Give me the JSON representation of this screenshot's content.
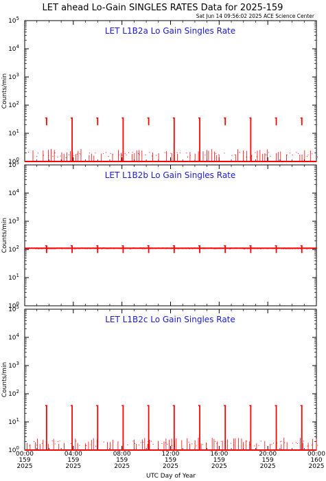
{
  "header": {
    "title": "LET ahead Lo-Gain SINGLES RATES Data for 2025-159",
    "timestamp": "Sat Jun 14 09:56:02 2025 ACE Science Center"
  },
  "colors": {
    "data": "#ff0000",
    "panel_title": "#1a1ad6",
    "axes": "#000000"
  },
  "chart_data": [
    {
      "type": "line",
      "title": "LET L1B2a Lo Gain Singles Rate",
      "ylabel": "Counts/min",
      "yscale": "log",
      "ylim": [
        1,
        100000
      ],
      "ytick_labels": [
        [
          "10",
          "0"
        ],
        [
          "10",
          "1"
        ],
        [
          "10",
          "2"
        ],
        [
          "10",
          "3"
        ],
        [
          "10",
          "4"
        ],
        [
          "10",
          "5"
        ]
      ],
      "xlim": [
        0,
        24
      ],
      "baseline": 1,
      "spike_hours": [
        1.8,
        3.9,
        6.0,
        8.1,
        10.2,
        12.3,
        14.4,
        16.5,
        18.6,
        20.7,
        22.8
      ],
      "spike_value": 35,
      "full_spike_hours": [
        3.9,
        8.1,
        12.3,
        14.4,
        18.6
      ],
      "scatter_value": 2
    },
    {
      "type": "line",
      "title": "LET L1B2b Lo Gain Singles Rate",
      "ylabel": "Counts/min",
      "yscale": "log",
      "ylim": [
        1,
        100000
      ],
      "ytick_labels": [
        [
          "10",
          "0"
        ],
        [
          "10",
          "1"
        ],
        [
          "10",
          "2"
        ],
        [
          "10",
          "3"
        ],
        [
          "10",
          "4"
        ],
        [
          "10",
          "5"
        ]
      ],
      "xlim": [
        0,
        24
      ],
      "baseline": 110,
      "spike_hours": [
        1.8,
        3.9,
        6.0,
        8.1,
        10.2,
        12.3,
        14.4,
        16.5,
        18.6,
        20.7,
        22.8
      ],
      "spike_value": 135,
      "full_spike_hours": [],
      "scatter_value": 0
    },
    {
      "type": "line",
      "title": "LET L1B2c Lo Gain Singles Rate",
      "ylabel": "Counts/min",
      "yscale": "log",
      "ylim": [
        1,
        100000
      ],
      "ytick_labels": [
        [
          "10",
          "0"
        ],
        [
          "10",
          "1"
        ],
        [
          "10",
          "2"
        ],
        [
          "10",
          "3"
        ],
        [
          "10",
          "4"
        ],
        [
          "10",
          "5"
        ]
      ],
      "xlim": [
        0,
        24
      ],
      "baseline": 1,
      "spike_hours": [
        1.8,
        3.9,
        6.0,
        8.1,
        10.2,
        12.3,
        14.4,
        16.5,
        18.6,
        20.7,
        22.8
      ],
      "spike_value": 38,
      "full_spike_hours": [
        1.8,
        3.9,
        6.0,
        8.1,
        10.2,
        12.3,
        14.4,
        16.5,
        18.6,
        20.7,
        22.8
      ],
      "scatter_value": 2
    }
  ],
  "x_axis": {
    "label": "UTC Day of Year",
    "ticks": [
      {
        "hour": 0,
        "time": "00:00",
        "doy": "159",
        "year": "2025"
      },
      {
        "hour": 4,
        "time": "04:00",
        "doy": "159",
        "year": "2025"
      },
      {
        "hour": 8,
        "time": "08:00",
        "doy": "159",
        "year": "2025"
      },
      {
        "hour": 12,
        "time": "12:00",
        "doy": "159",
        "year": "2025"
      },
      {
        "hour": 16,
        "time": "16:00",
        "doy": "159",
        "year": "2025"
      },
      {
        "hour": 20,
        "time": "20:00",
        "doy": "159",
        "year": "2025"
      },
      {
        "hour": 24,
        "time": "00:00",
        "doy": "160",
        "year": "2025"
      }
    ]
  }
}
